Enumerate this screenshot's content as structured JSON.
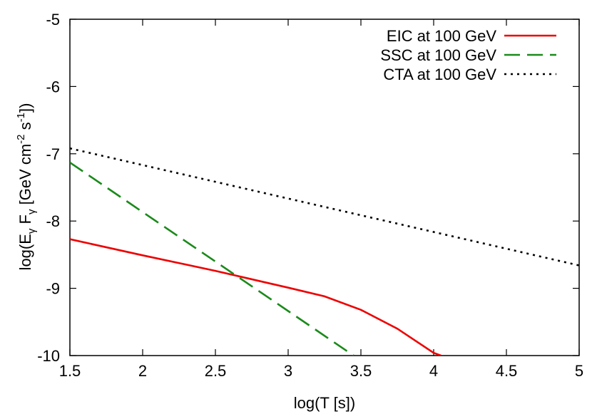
{
  "chart_data": {
    "type": "line",
    "xlabel": "log(T [s])",
    "ylabel": "log(Eγ Fγ [GeV cm⁻² s⁻¹])",
    "xlim": [
      1.5,
      5
    ],
    "ylim": [
      -10,
      -5
    ],
    "xticks": [
      1.5,
      2,
      2.5,
      3,
      3.5,
      4,
      4.5,
      5
    ],
    "xtick_labels": [
      "1.5",
      "2",
      "2.5",
      "3",
      "3.5",
      "4",
      "4.5",
      "5"
    ],
    "yticks": [
      -10,
      -9,
      -8,
      -7,
      -6,
      -5
    ],
    "ytick_labels": [
      "-10",
      "-9",
      "-8",
      "-7",
      "-6",
      "-5"
    ],
    "grid": false,
    "legend_position": "top-right",
    "series": [
      {
        "name": "EIC at 100 GeV",
        "color": "#ee0000",
        "style": "solid",
        "points": [
          [
            1.5,
            -8.27
          ],
          [
            2.0,
            -8.51
          ],
          [
            2.5,
            -8.74
          ],
          [
            3.0,
            -8.99
          ],
          [
            3.25,
            -9.12
          ],
          [
            3.5,
            -9.32
          ],
          [
            3.75,
            -9.6
          ],
          [
            4.0,
            -9.96
          ],
          [
            4.05,
            -10.0
          ]
        ]
      },
      {
        "name": "SSC at 100 GeV",
        "color": "#1a8a1a",
        "style": "dashed",
        "points": [
          [
            1.5,
            -7.13
          ],
          [
            3.45,
            -10.0
          ]
        ]
      },
      {
        "name": "CTA at 100 GeV",
        "color": "#000000",
        "style": "dotted",
        "points": [
          [
            1.5,
            -6.92
          ],
          [
            5.0,
            -8.66
          ]
        ]
      }
    ]
  }
}
